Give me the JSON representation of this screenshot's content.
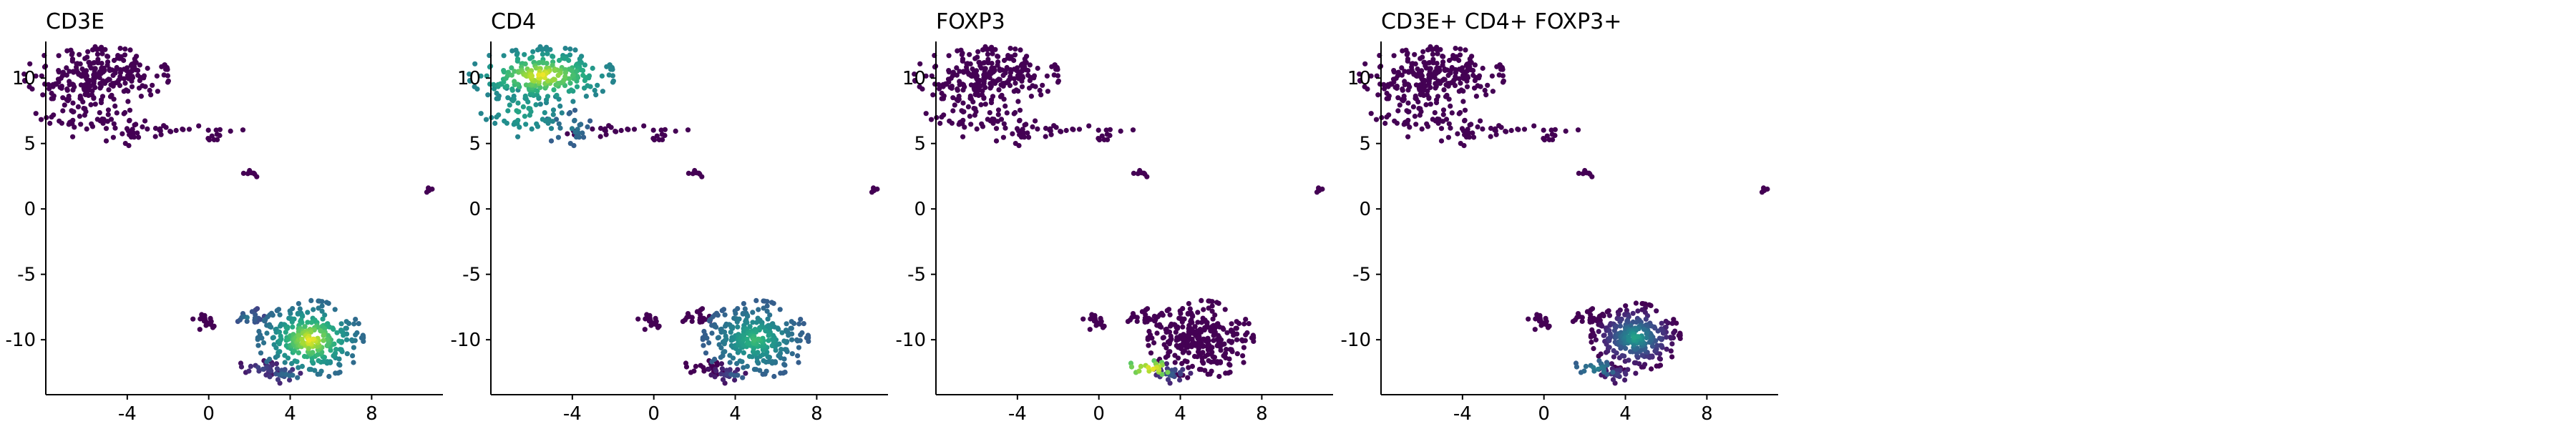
{
  "chart_data": [
    {
      "type": "scatter",
      "title": "CD3E",
      "xlabel": "",
      "ylabel": "",
      "xlim": [
        -8,
        11.5
      ],
      "ylim": [
        -14.2,
        12.8
      ],
      "xticks": [
        -4,
        0,
        4,
        8
      ],
      "yticks": [
        10,
        5,
        0,
        -5,
        -10
      ],
      "grid": false,
      "colormap": "viridis",
      "clusters": [
        {
          "id": "A",
          "center": [
            -5.5,
            10.2
          ],
          "spread": [
            1.8,
            1.1
          ],
          "n": 240,
          "value_core": 0.0,
          "value_edge": 0.0
        },
        {
          "id": "B",
          "center": [
            -6.5,
            7.5
          ],
          "spread": [
            1.0,
            1.0
          ],
          "n": 60,
          "value_core": 0.0,
          "value_edge": 0.0
        },
        {
          "id": "C",
          "center": [
            -4.2,
            6.2
          ],
          "spread": [
            0.6,
            0.7
          ],
          "n": 25,
          "value_core": 0.0,
          "value_edge": 0.0
        },
        {
          "id": "D",
          "center": [
            -1.5,
            6.0
          ],
          "spread": [
            1.6,
            0.25
          ],
          "n": 25,
          "value_core": 0.0,
          "value_edge": 0.0
        },
        {
          "id": "E",
          "center": [
            0.3,
            5.5
          ],
          "spread": [
            0.2,
            0.15
          ],
          "n": 6,
          "value_core": 0.0,
          "value_edge": 0.0
        },
        {
          "id": "F",
          "center": [
            2.2,
            2.8
          ],
          "spread": [
            0.25,
            0.2
          ],
          "n": 8,
          "value_core": 0.0,
          "value_edge": 0.0
        },
        {
          "id": "G",
          "center": [
            10.8,
            1.4
          ],
          "spread": [
            0.2,
            0.1
          ],
          "n": 5,
          "value_core": 0.0,
          "value_edge": 0.0
        },
        {
          "id": "H",
          "center": [
            -0.1,
            -8.6
          ],
          "spread": [
            0.35,
            0.35
          ],
          "n": 20,
          "value_core": 0.0,
          "value_edge": 0.0
        },
        {
          "id": "I",
          "center": [
            1.9,
            -8.3
          ],
          "spread": [
            0.45,
            0.4
          ],
          "n": 20,
          "value_core": 0.4,
          "value_edge": 0.2
        },
        {
          "id": "J",
          "center": [
            2.6,
            -12.2
          ],
          "spread": [
            0.7,
            0.3
          ],
          "n": 20,
          "value_core": 0.25,
          "value_edge": 0.05
        },
        {
          "id": "K",
          "center": [
            3.6,
            -12.6
          ],
          "spread": [
            0.5,
            0.4
          ],
          "n": 25,
          "value_core": 0.35,
          "value_edge": 0.1
        },
        {
          "id": "L",
          "center": [
            5.0,
            -10.0
          ],
          "spread": [
            1.3,
            1.5
          ],
          "n": 300,
          "value_core": 1.0,
          "value_edge": 0.35
        }
      ]
    },
    {
      "type": "scatter",
      "title": "CD4",
      "xlabel": "",
      "ylabel": "",
      "xlim": [
        -8,
        11.5
      ],
      "ylim": [
        -14.2,
        12.8
      ],
      "xticks": [
        -4,
        0,
        4,
        8
      ],
      "yticks": [
        10,
        5,
        0,
        -5,
        -10
      ],
      "grid": false,
      "colormap": "viridis",
      "clusters": [
        {
          "id": "A",
          "center": [
            -5.5,
            10.2
          ],
          "spread": [
            1.8,
            1.1
          ],
          "n": 240,
          "value_core": 1.0,
          "value_edge": 0.45
        },
        {
          "id": "B",
          "center": [
            -6.5,
            7.5
          ],
          "spread": [
            1.0,
            1.0
          ],
          "n": 60,
          "value_core": 0.6,
          "value_edge": 0.45
        },
        {
          "id": "C",
          "center": [
            -4.2,
            6.2
          ],
          "spread": [
            0.6,
            0.7
          ],
          "n": 25,
          "value_core": 0.45,
          "value_edge": 0.3
        },
        {
          "id": "D",
          "center": [
            -1.5,
            6.0
          ],
          "spread": [
            1.6,
            0.25
          ],
          "n": 25,
          "value_core": 0.0,
          "value_edge": 0.0
        },
        {
          "id": "E",
          "center": [
            0.3,
            5.5
          ],
          "spread": [
            0.2,
            0.15
          ],
          "n": 6,
          "value_core": 0.0,
          "value_edge": 0.0
        },
        {
          "id": "F",
          "center": [
            2.2,
            2.8
          ],
          "spread": [
            0.25,
            0.2
          ],
          "n": 8,
          "value_core": 0.0,
          "value_edge": 0.0
        },
        {
          "id": "G",
          "center": [
            10.8,
            1.4
          ],
          "spread": [
            0.2,
            0.1
          ],
          "n": 5,
          "value_core": 0.0,
          "value_edge": 0.0
        },
        {
          "id": "H",
          "center": [
            -0.1,
            -8.6
          ],
          "spread": [
            0.35,
            0.35
          ],
          "n": 20,
          "value_core": 0.0,
          "value_edge": 0.0
        },
        {
          "id": "I",
          "center": [
            1.9,
            -8.3
          ],
          "spread": [
            0.45,
            0.4
          ],
          "n": 20,
          "value_core": 0.0,
          "value_edge": 0.0
        },
        {
          "id": "J",
          "center": [
            2.6,
            -12.2
          ],
          "spread": [
            0.7,
            0.3
          ],
          "n": 20,
          "value_core": 0.0,
          "value_edge": 0.0
        },
        {
          "id": "K",
          "center": [
            3.6,
            -12.6
          ],
          "spread": [
            0.5,
            0.4
          ],
          "n": 25,
          "value_core": 0.2,
          "value_edge": 0.05
        },
        {
          "id": "L",
          "center": [
            5.0,
            -10.0
          ],
          "spread": [
            1.3,
            1.5
          ],
          "n": 300,
          "value_core": 0.7,
          "value_edge": 0.3
        }
      ]
    },
    {
      "type": "scatter",
      "title": "FOXP3",
      "xlabel": "",
      "ylabel": "",
      "xlim": [
        -8,
        11.5
      ],
      "ylim": [
        -14.2,
        12.8
      ],
      "xticks": [
        -4,
        0,
        4,
        8
      ],
      "yticks": [
        10,
        5,
        0,
        -5,
        -10
      ],
      "grid": false,
      "colormap": "viridis",
      "clusters": [
        {
          "id": "A",
          "center": [
            -5.5,
            10.2
          ],
          "spread": [
            1.8,
            1.1
          ],
          "n": 240,
          "value_core": 0.0,
          "value_edge": 0.0
        },
        {
          "id": "B",
          "center": [
            -6.5,
            7.5
          ],
          "spread": [
            1.0,
            1.0
          ],
          "n": 60,
          "value_core": 0.0,
          "value_edge": 0.0
        },
        {
          "id": "C",
          "center": [
            -4.2,
            6.2
          ],
          "spread": [
            0.6,
            0.7
          ],
          "n": 25,
          "value_core": 0.0,
          "value_edge": 0.0
        },
        {
          "id": "D",
          "center": [
            -1.5,
            6.0
          ],
          "spread": [
            1.6,
            0.25
          ],
          "n": 25,
          "value_core": 0.0,
          "value_edge": 0.0
        },
        {
          "id": "E",
          "center": [
            0.3,
            5.5
          ],
          "spread": [
            0.2,
            0.15
          ],
          "n": 6,
          "value_core": 0.0,
          "value_edge": 0.0
        },
        {
          "id": "F",
          "center": [
            2.2,
            2.8
          ],
          "spread": [
            0.25,
            0.2
          ],
          "n": 8,
          "value_core": 0.0,
          "value_edge": 0.0
        },
        {
          "id": "G",
          "center": [
            10.8,
            1.4
          ],
          "spread": [
            0.2,
            0.1
          ],
          "n": 5,
          "value_core": 0.0,
          "value_edge": 0.0
        },
        {
          "id": "H",
          "center": [
            -0.1,
            -8.6
          ],
          "spread": [
            0.35,
            0.35
          ],
          "n": 20,
          "value_core": 0.0,
          "value_edge": 0.0
        },
        {
          "id": "I",
          "center": [
            1.9,
            -8.3
          ],
          "spread": [
            0.45,
            0.4
          ],
          "n": 20,
          "value_core": 0.0,
          "value_edge": 0.0
        },
        {
          "id": "J",
          "center": [
            2.6,
            -12.2
          ],
          "spread": [
            0.7,
            0.3
          ],
          "n": 20,
          "value_core": 1.0,
          "value_edge": 0.75
        },
        {
          "id": "K",
          "center": [
            3.6,
            -12.6
          ],
          "spread": [
            0.5,
            0.4
          ],
          "n": 25,
          "value_core": 0.3,
          "value_edge": 0.1
        },
        {
          "id": "L",
          "center": [
            5.0,
            -10.0
          ],
          "spread": [
            1.3,
            1.5
          ],
          "n": 300,
          "value_core": 0.0,
          "value_edge": 0.0
        }
      ]
    },
    {
      "type": "scatter",
      "title": "CD3E+ CD4+ FOXP3+",
      "xlabel": "",
      "ylabel": "",
      "xlim": [
        -8,
        11.5
      ],
      "ylim": [
        -14.2,
        12.8
      ],
      "xticks": [
        -4,
        0,
        4,
        8
      ],
      "yticks": [
        10,
        5,
        0,
        -5,
        -10
      ],
      "grid": false,
      "colormap": "viridis",
      "clusters": [
        {
          "id": "A",
          "center": [
            -5.5,
            10.2
          ],
          "spread": [
            1.8,
            1.1
          ],
          "n": 240,
          "value_core": 0.0,
          "value_edge": 0.0
        },
        {
          "id": "B",
          "center": [
            -6.5,
            7.5
          ],
          "spread": [
            1.0,
            1.0
          ],
          "n": 60,
          "value_core": 0.0,
          "value_edge": 0.0
        },
        {
          "id": "C",
          "center": [
            -4.2,
            6.2
          ],
          "spread": [
            0.6,
            0.7
          ],
          "n": 25,
          "value_core": 0.0,
          "value_edge": 0.0
        },
        {
          "id": "D",
          "center": [
            -1.5,
            6.0
          ],
          "spread": [
            1.6,
            0.25
          ],
          "n": 25,
          "value_core": 0.0,
          "value_edge": 0.0
        },
        {
          "id": "E",
          "center": [
            0.3,
            5.5
          ],
          "spread": [
            0.2,
            0.15
          ],
          "n": 6,
          "value_core": 0.0,
          "value_edge": 0.0
        },
        {
          "id": "F",
          "center": [
            2.2,
            2.8
          ],
          "spread": [
            0.25,
            0.2
          ],
          "n": 8,
          "value_core": 0.0,
          "value_edge": 0.0
        },
        {
          "id": "G",
          "center": [
            10.8,
            1.4
          ],
          "spread": [
            0.2,
            0.1
          ],
          "n": 5,
          "value_core": 0.0,
          "value_edge": 0.0
        },
        {
          "id": "H",
          "center": [
            -0.1,
            -8.6
          ],
          "spread": [
            0.35,
            0.35
          ],
          "n": 20,
          "value_core": 0.0,
          "value_edge": 0.0
        },
        {
          "id": "I",
          "center": [
            1.9,
            -8.3
          ],
          "spread": [
            0.45,
            0.4
          ],
          "n": 20,
          "value_core": 0.0,
          "value_edge": 0.0
        },
        {
          "id": "J",
          "center": [
            2.6,
            -12.2
          ],
          "spread": [
            0.7,
            0.3
          ],
          "n": 20,
          "value_core": 0.45,
          "value_edge": 0.3
        },
        {
          "id": "K",
          "center": [
            3.6,
            -12.6
          ],
          "spread": [
            0.5,
            0.4
          ],
          "n": 25,
          "value_core": 0.2,
          "value_edge": 0.05
        },
        {
          "id": "L",
          "center": [
            4.5,
            -9.8
          ],
          "spread": [
            1.1,
            1.3
          ],
          "n": 300,
          "value_core": 0.6,
          "value_edge": 0.0
        }
      ]
    }
  ]
}
